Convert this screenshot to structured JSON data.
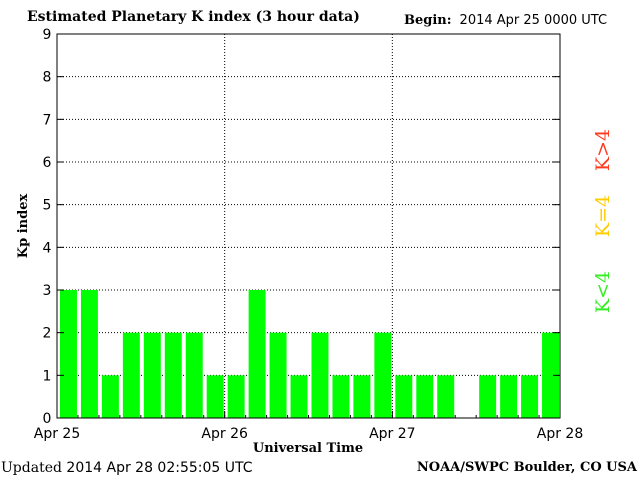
{
  "header": {
    "title": "Estimated Planetary K index (3 hour data)",
    "begin_label": "Begin:",
    "begin_value": "2014 Apr 25 0000 UTC"
  },
  "footer": {
    "updated_label": "Updated",
    "updated_value": "2014 Apr 28 02:55:05 UTC",
    "credit": "NOAA/SWPC Boulder, CO USA"
  },
  "legend": [
    {
      "label": "K>4",
      "color": "#ff3b1f"
    },
    {
      "label": "K=4",
      "color": "#ffcc00"
    },
    {
      "label": "K<4",
      "color": "#33ee22"
    }
  ],
  "chart_data": {
    "type": "bar",
    "title": "Estimated Planetary K index (3 hour data)",
    "xlabel": "Universal Time",
    "ylabel": "Kp index",
    "ylim": [
      0,
      9
    ],
    "yticks": [
      0,
      1,
      2,
      3,
      4,
      5,
      6,
      7,
      8,
      9
    ],
    "xticks": [
      "Apr 25",
      "Apr 26",
      "Apr 27",
      "Apr 28"
    ],
    "grid": true,
    "bar_color": "#00ff00",
    "series": [
      {
        "values": [
          3,
          3,
          1,
          2,
          2,
          2,
          2,
          1,
          1,
          3,
          2,
          1,
          2,
          1,
          1,
          2,
          1,
          1,
          1,
          0,
          1,
          1,
          1,
          2
        ]
      }
    ]
  }
}
